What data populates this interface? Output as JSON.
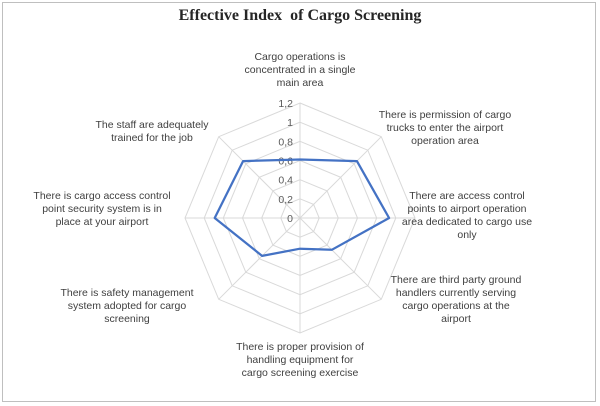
{
  "chart_data": {
    "type": "radar",
    "title": "Effective Index  of Cargo Screening",
    "categories": [
      "Cargo operations is concentrated in a single main area",
      "There is permission of cargo trucks to enter the airport operation area",
      "There are access control points to airport operation area dedicated to cargo use only",
      "There are third party ground handlers currently serving cargo operations at the airport",
      "There is proper provision of handling equipment for cargo screening exercise",
      "There is safety management system adopted for cargo screening",
      "There is cargo access control point security system is in place at your airport",
      "The staff are adequately trained for the job"
    ],
    "category_lines": [
      [
        "Cargo operations is",
        "concentrated in a single",
        "main area"
      ],
      [
        "There is permission of cargo",
        "trucks to enter the airport",
        "operation area"
      ],
      [
        "There are access control",
        "points to airport operation",
        "area dedicated to cargo use",
        "only"
      ],
      [
        "There are third party ground",
        "handlers currently serving",
        "cargo operations at the",
        "airport"
      ],
      [
        "There is proper provision of",
        "handling equipment for",
        "cargo screening exercise"
      ],
      [
        "There is safety management",
        "system adopted for cargo",
        "screening"
      ],
      [
        "There is cargo access control",
        "point security system is in",
        "place at your airport"
      ],
      [
        "The staff are adequately",
        "trained for the job"
      ]
    ],
    "series": [
      {
        "values": [
          0.61,
          0.84,
          0.93,
          0.47,
          0.32,
          0.56,
          0.89,
          0.84
        ]
      }
    ],
    "rmax": 1.2,
    "ticks": [
      "0",
      "0,2",
      "0,4",
      "0,6",
      "0,8",
      "1",
      "1,2"
    ],
    "colors": {
      "series": "#4472c4",
      "grid": "#d9d9d9"
    },
    "grid": true,
    "legend": "none"
  }
}
